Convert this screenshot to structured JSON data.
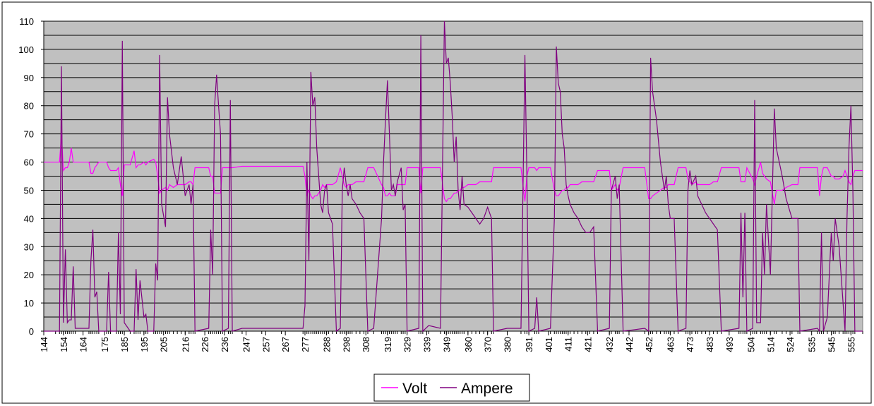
{
  "chart_data": {
    "type": "line",
    "x": [
      144,
      150,
      152,
      153,
      154,
      155,
      156,
      157,
      158,
      159,
      160,
      167,
      168,
      169,
      170,
      171,
      172,
      176,
      177,
      178,
      181,
      182,
      183,
      184,
      185,
      188,
      190,
      191,
      192,
      193,
      195,
      196,
      197,
      200,
      201,
      202,
      203,
      204,
      206,
      207,
      208,
      210,
      212,
      214,
      216,
      218,
      219,
      220,
      221,
      228,
      229,
      230,
      231,
      232,
      233,
      234,
      235,
      238,
      239,
      240,
      245,
      255,
      265,
      276,
      277,
      278,
      279,
      280,
      281,
      282,
      283,
      284,
      285,
      286,
      287,
      288,
      289,
      291,
      293,
      295,
      296,
      297,
      298,
      299,
      300,
      301,
      303,
      305,
      307,
      309,
      312,
      316,
      317,
      318,
      319,
      320,
      321,
      322,
      323,
      324,
      326,
      327,
      328,
      329,
      335,
      336,
      337,
      340,
      346,
      348,
      349,
      350,
      351,
      352,
      353,
      354,
      355,
      356,
      357,
      358,
      360,
      362,
      364,
      366,
      368,
      370,
      372,
      373,
      380,
      387,
      389,
      390,
      391,
      394,
      395,
      396,
      402,
      404,
      405,
      406,
      407,
      408,
      409,
      410,
      411,
      412,
      414,
      416,
      418,
      420,
      422,
      424,
      426,
      432,
      433,
      435,
      436,
      437,
      439,
      450,
      452,
      453,
      454,
      456,
      458,
      460,
      461,
      462,
      463,
      465,
      467,
      471,
      472,
      473,
      474,
      476,
      477,
      479,
      481,
      483,
      485,
      487,
      489,
      498,
      499,
      500,
      501,
      502,
      505,
      506,
      507,
      509,
      510,
      511,
      512,
      514,
      516,
      517,
      520,
      522,
      525,
      528,
      529,
      538,
      539,
      540,
      541,
      543,
      545,
      546,
      547,
      549,
      551,
      552,
      553,
      554,
      555,
      556,
      557,
      561
    ],
    "series": [
      {
        "name": "Volt",
        "color": "#ff00ff",
        "values": [
          60,
          60,
          60,
          70,
          57,
          58,
          58,
          60,
          65,
          60,
          60,
          60,
          56,
          56,
          58,
          59,
          60,
          60,
          58,
          57,
          57,
          58,
          52,
          48,
          59,
          59,
          64,
          58,
          59,
          59,
          60,
          59,
          60,
          61,
          60,
          55,
          49,
          50,
          51,
          50,
          52,
          51,
          52,
          52,
          52,
          53,
          53,
          52,
          58,
          58,
          55,
          55,
          49,
          49,
          49,
          49,
          58,
          58,
          58,
          58,
          58.5,
          58.5,
          58.5,
          58.5,
          55,
          48,
          50,
          48,
          47,
          48,
          48,
          49,
          50,
          52,
          51,
          52,
          52,
          52,
          53,
          58,
          55,
          52,
          51,
          52,
          52,
          52,
          53,
          53,
          53,
          58,
          58,
          52,
          51,
          48,
          48,
          49,
          48,
          48,
          48,
          52,
          52,
          52,
          52,
          58,
          58,
          49,
          58,
          58,
          58,
          47,
          46,
          47,
          47,
          48,
          49,
          49,
          50,
          50,
          51,
          51,
          52,
          52,
          52,
          53,
          53,
          53,
          53,
          58,
          58,
          58,
          46,
          55,
          58,
          58,
          57,
          58,
          58,
          50,
          48,
          48,
          49,
          50,
          50,
          51,
          51,
          52,
          52,
          52,
          53,
          53,
          53,
          53,
          57,
          57,
          50,
          52,
          50,
          51,
          58,
          58,
          47,
          47,
          48,
          49,
          50,
          51,
          51,
          52,
          52,
          52,
          58,
          58,
          54,
          53,
          52,
          53,
          52,
          52,
          52,
          52,
          53,
          53,
          58,
          58,
          53,
          53,
          53,
          58,
          54,
          52,
          55,
          60,
          56,
          55,
          54,
          53,
          45,
          50,
          50,
          51,
          52,
          52,
          58,
          58,
          48,
          55,
          58,
          58,
          55,
          55,
          54,
          54,
          55,
          57,
          55,
          53,
          52,
          55,
          57,
          57
        ]
      },
      {
        "name": "Ampere",
        "color": "#800080",
        "values": [
          0,
          0,
          0,
          94,
          3,
          29,
          3,
          4,
          4,
          23,
          1,
          1,
          25,
          36,
          12,
          14,
          0,
          0,
          21,
          0,
          0,
          35,
          6,
          103,
          3,
          0,
          0,
          22,
          4,
          18,
          5,
          6,
          0,
          0,
          24,
          18,
          98,
          45,
          37,
          83,
          70,
          58,
          52,
          62,
          48,
          52,
          45,
          52,
          0,
          1,
          36,
          20,
          80,
          91,
          80,
          70,
          0,
          1,
          82,
          0,
          1,
          1,
          1,
          1,
          9,
          60,
          25,
          92,
          80,
          83,
          65,
          55,
          45,
          42,
          50,
          52,
          42,
          38,
          0,
          1,
          50,
          58,
          52,
          48,
          52,
          47,
          45,
          42,
          40,
          0,
          1,
          40,
          60,
          75,
          89,
          70,
          50,
          52,
          48,
          53,
          58,
          43,
          45,
          0,
          1,
          105,
          0,
          2,
          1,
          110,
          95,
          97,
          88,
          76,
          60,
          69,
          50,
          43,
          55,
          45,
          44,
          42,
          40,
          38,
          40,
          44,
          40,
          0,
          1,
          1,
          98,
          55,
          0,
          1,
          12,
          0,
          1,
          40,
          101,
          88,
          85,
          70,
          65,
          52,
          48,
          45,
          42,
          40,
          37,
          35,
          35,
          37,
          0,
          1,
          50,
          55,
          47,
          52,
          0,
          1,
          0,
          97,
          85,
          75,
          60,
          50,
          55,
          45,
          40,
          40,
          0,
          1,
          50,
          57,
          52,
          55,
          48,
          45,
          42,
          40,
          38,
          36,
          0,
          1,
          42,
          12,
          42,
          0,
          1,
          82,
          3,
          3,
          35,
          20,
          45,
          20,
          79,
          65,
          55,
          47,
          40,
          40,
          0,
          1,
          0,
          35,
          0,
          5,
          35,
          25,
          40,
          30,
          10,
          0,
          40,
          65,
          80,
          50,
          0,
          0
        ]
      }
    ],
    "xlim": [
      144,
      561
    ],
    "xticks": [
      144,
      154,
      164,
      175,
      185,
      195,
      205,
      216,
      226,
      236,
      247,
      257,
      267,
      277,
      288,
      298,
      308,
      319,
      329,
      339,
      349,
      360,
      370,
      380,
      391,
      401,
      411,
      421,
      432,
      442,
      452,
      463,
      473,
      483,
      493,
      504,
      514,
      524,
      535,
      545,
      555
    ],
    "ylim": [
      0,
      110
    ],
    "yticks": [
      0,
      10,
      20,
      30,
      40,
      50,
      60,
      70,
      80,
      90,
      100,
      110
    ],
    "minor_yticks": [
      5,
      15,
      25,
      35,
      45,
      55,
      65,
      75,
      85,
      95,
      105
    ],
    "grid": true,
    "plot_background": "#c0c0c0",
    "legend": "bottom"
  }
}
